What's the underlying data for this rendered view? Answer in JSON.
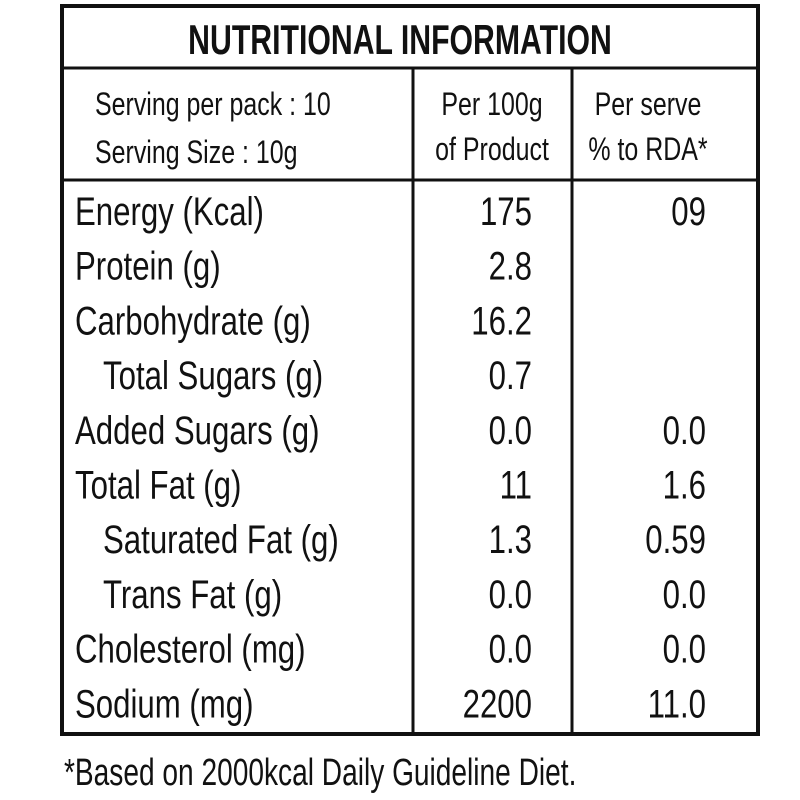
{
  "header": {
    "title": "NUTRITIONAL INFORMATION"
  },
  "table": {
    "serving": [
      "Serving per pack : 10",
      "Serving Size : 10g"
    ],
    "columns": [
      [
        "Per 100g",
        "of Product"
      ],
      [
        "Per serve",
        "% to RDA*"
      ]
    ],
    "rows": [
      [
        "Energy (Kcal)",
        "175",
        "09"
      ],
      [
        "Protein (g)",
        "2.8",
        null
      ],
      [
        "Carbohydrate (g)",
        "16.2",
        null
      ],
      [
        "Total Sugars (g)",
        "0.7",
        null
      ],
      [
        "Added Sugars (g)",
        "0.0",
        "0.0"
      ],
      [
        "Total Fat (g)",
        "11",
        "1.6"
      ],
      [
        "Saturated Fat (g)",
        "1.3",
        "0.59"
      ],
      [
        "Trans Fat (g)",
        "0.0",
        "0.0"
      ],
      [
        "Cholesterol (mg)",
        "0.0",
        "0.0"
      ],
      [
        "Sodium (mg)",
        "2200",
        "11.0"
      ]
    ]
  },
  "footer": {
    "note": "*Based on 2000kcal Daily Guideline Diet."
  }
}
